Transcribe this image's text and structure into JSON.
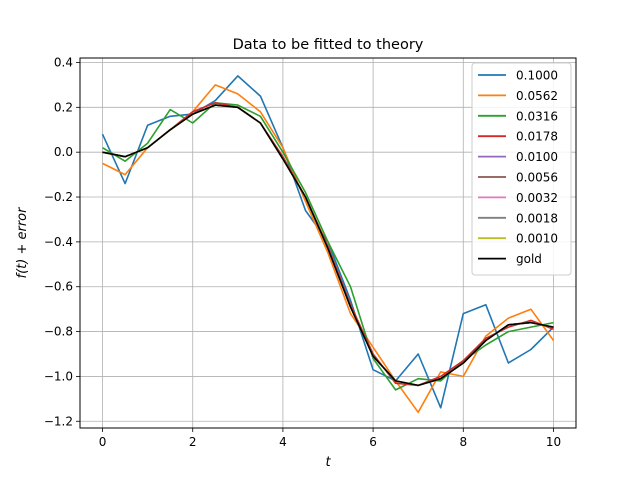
{
  "chart_data": {
    "type": "line",
    "title": "Data to be fitted to theory",
    "xlabel": "t",
    "ylabel": "f(t) + error",
    "xlim": [
      -0.5,
      10.5
    ],
    "ylim": [
      -1.23,
      0.42
    ],
    "xticks": [
      0,
      2,
      4,
      6,
      8,
      10
    ],
    "xtick_labels": [
      "0",
      "2",
      "4",
      "6",
      "8",
      "10"
    ],
    "yticks": [
      0.4,
      0.2,
      0.0,
      -0.2,
      -0.4,
      -0.6,
      -0.8,
      -1.0,
      -1.2
    ],
    "ytick_labels": [
      "0.4",
      "0.2",
      "0.0",
      "−0.2",
      "−0.4",
      "−0.6",
      "−0.8",
      "−1.0",
      "−1.2"
    ],
    "grid": true,
    "legend_position": "top-right",
    "x": [
      0,
      0.5,
      1,
      1.5,
      2,
      2.5,
      3,
      3.5,
      4,
      4.5,
      5,
      5.5,
      6,
      6.5,
      7,
      7.5,
      8,
      8.5,
      9,
      9.5,
      10
    ],
    "series": [
      {
        "name": "0.1000",
        "color": "#1f77b4",
        "noise": 0.1,
        "values": [
          0.08,
          -0.14,
          0.12,
          0.16,
          0.17,
          0.23,
          0.34,
          0.25,
          0.02,
          -0.26,
          -0.4,
          -0.66,
          -0.97,
          -1.02,
          -0.9,
          -1.14,
          -0.72,
          -0.68,
          -0.94,
          -0.88,
          -0.78
        ]
      },
      {
        "name": "0.0562",
        "color": "#ff7f0e",
        "noise": 0.0562,
        "values": [
          -0.05,
          -0.1,
          0.02,
          0.1,
          0.18,
          0.3,
          0.26,
          0.18,
          0.02,
          -0.22,
          -0.45,
          -0.72,
          -0.87,
          -1.02,
          -1.16,
          -0.98,
          -1.0,
          -0.82,
          -0.74,
          -0.7,
          -0.84
        ]
      },
      {
        "name": "0.0316",
        "color": "#2ca02c",
        "noise": 0.0316,
        "values": [
          0.02,
          -0.04,
          0.04,
          0.19,
          0.13,
          0.22,
          0.21,
          0.16,
          0.0,
          -0.18,
          -0.4,
          -0.6,
          -0.92,
          -1.06,
          -1.01,
          -1.02,
          -0.93,
          -0.86,
          -0.8,
          -0.78,
          -0.76
        ]
      },
      {
        "name": "0.0178",
        "color": "#d62728",
        "noise": 0.0178,
        "values": [
          0.0,
          -0.02,
          0.02,
          0.1,
          0.18,
          0.22,
          0.2,
          0.13,
          -0.02,
          -0.2,
          -0.42,
          -0.68,
          -0.9,
          -1.03,
          -1.04,
          -1.0,
          -0.93,
          -0.83,
          -0.78,
          -0.75,
          -0.79
        ]
      },
      {
        "name": "0.0100",
        "color": "#9467bd",
        "noise": 0.01,
        "values": [
          0.0,
          -0.02,
          0.02,
          0.1,
          0.17,
          0.21,
          0.2,
          0.13,
          -0.03,
          -0.2,
          -0.43,
          -0.69,
          -0.91,
          -1.02,
          -1.04,
          -1.01,
          -0.94,
          -0.84,
          -0.77,
          -0.76,
          -0.78
        ]
      },
      {
        "name": "0.0056",
        "color": "#8c564b",
        "noise": 0.0056,
        "values": [
          0.0,
          -0.02,
          0.02,
          0.1,
          0.17,
          0.21,
          0.2,
          0.13,
          -0.03,
          -0.2,
          -0.43,
          -0.69,
          -0.91,
          -1.02,
          -1.04,
          -1.01,
          -0.94,
          -0.84,
          -0.77,
          -0.76,
          -0.78
        ]
      },
      {
        "name": "0.0032",
        "color": "#e377c2",
        "noise": 0.0032,
        "values": [
          0.0,
          -0.02,
          0.02,
          0.1,
          0.17,
          0.21,
          0.2,
          0.13,
          -0.03,
          -0.2,
          -0.43,
          -0.69,
          -0.91,
          -1.02,
          -1.04,
          -1.01,
          -0.94,
          -0.84,
          -0.77,
          -0.76,
          -0.78
        ]
      },
      {
        "name": "0.0018",
        "color": "#7f7f7f",
        "noise": 0.0018,
        "values": [
          0.0,
          -0.02,
          0.02,
          0.1,
          0.17,
          0.21,
          0.2,
          0.13,
          -0.03,
          -0.2,
          -0.43,
          -0.69,
          -0.91,
          -1.02,
          -1.04,
          -1.01,
          -0.94,
          -0.84,
          -0.77,
          -0.76,
          -0.78
        ]
      },
      {
        "name": "0.0010",
        "color": "#bcbd22",
        "noise": 0.001,
        "values": [
          0.0,
          -0.02,
          0.02,
          0.1,
          0.17,
          0.21,
          0.2,
          0.13,
          -0.03,
          -0.2,
          -0.43,
          -0.69,
          -0.91,
          -1.02,
          -1.04,
          -1.01,
          -0.94,
          -0.84,
          -0.77,
          -0.76,
          -0.78
        ]
      },
      {
        "name": "gold",
        "color": "#000000",
        "noise": 0,
        "values": [
          0.0,
          -0.02,
          0.02,
          0.1,
          0.17,
          0.21,
          0.2,
          0.13,
          -0.03,
          -0.2,
          -0.43,
          -0.69,
          -0.91,
          -1.02,
          -1.04,
          -1.01,
          -0.94,
          -0.84,
          -0.77,
          -0.76,
          -0.78
        ]
      }
    ]
  }
}
